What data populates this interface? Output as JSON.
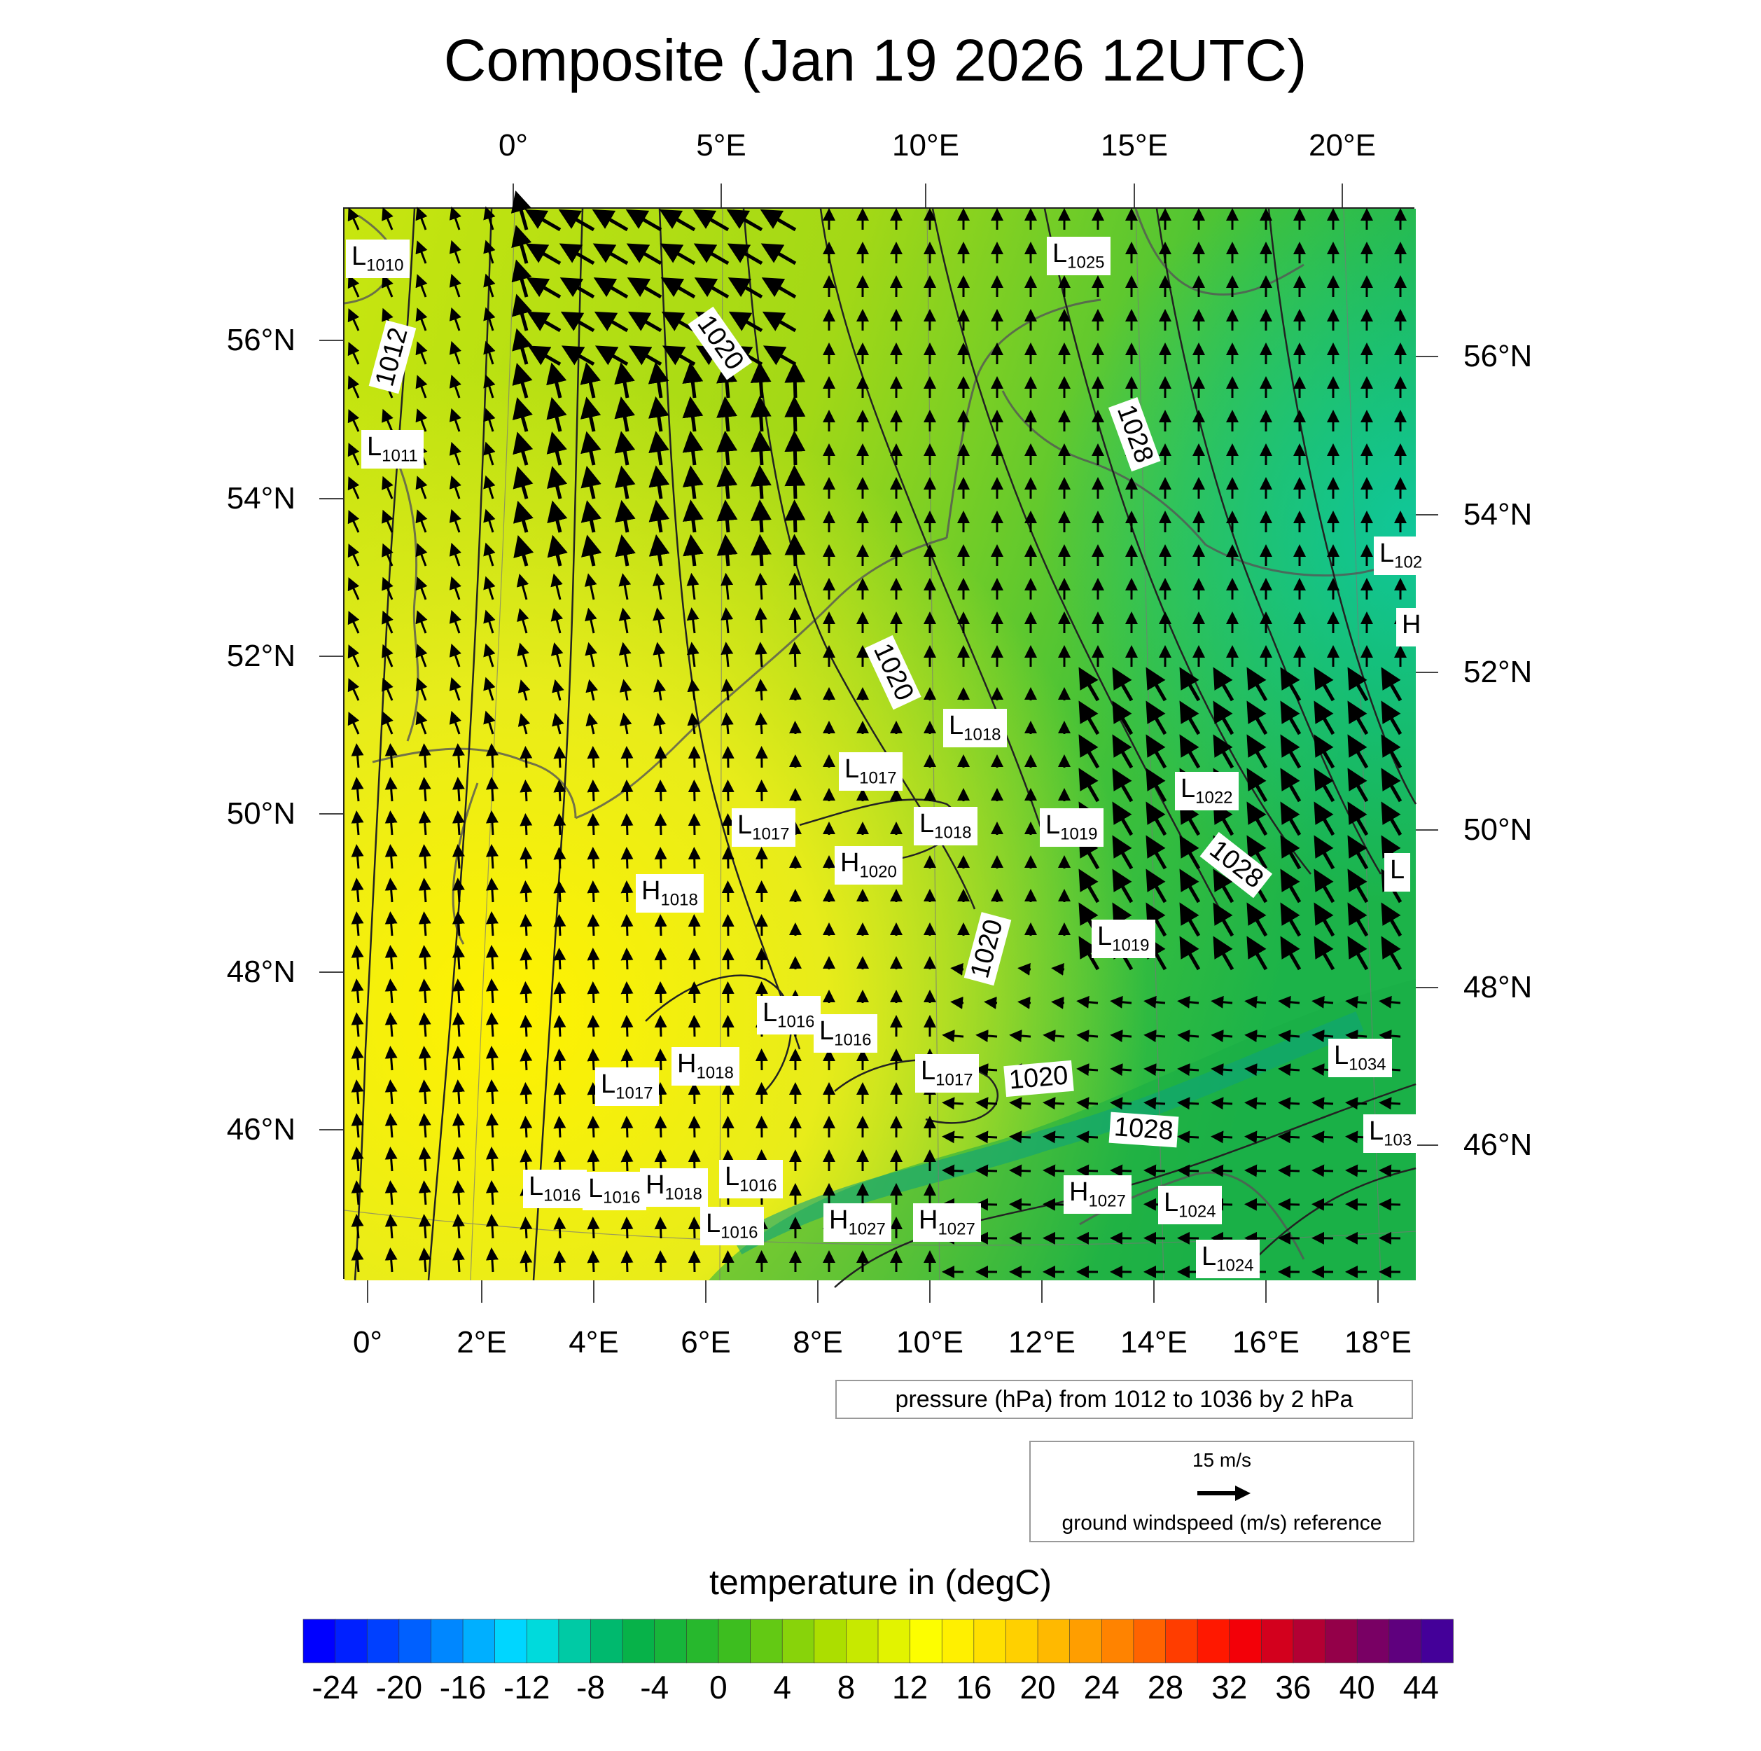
{
  "title": "Composite (Jan 19 2026 12UTC)",
  "top_lon_labels": [
    "0°",
    "5°E",
    "10°E",
    "15°E",
    "20°E"
  ],
  "bottom_lon_labels": [
    "0°",
    "2°E",
    "4°E",
    "6°E",
    "8°E",
    "10°E",
    "12°E",
    "14°E",
    "16°E",
    "18°E"
  ],
  "left_lat_labels": [
    "56°N",
    "54°N",
    "52°N",
    "50°N",
    "48°N",
    "46°N"
  ],
  "right_lat_labels": [
    "56°N",
    "54°N",
    "52°N",
    "50°N",
    "48°N",
    "46°N"
  ],
  "pressure_centers": [
    {
      "type": "L",
      "value": "1010"
    },
    {
      "type": "L",
      "value": "1025"
    },
    {
      "type": "L",
      "value": "1011"
    },
    {
      "type": "L",
      "value": "1018"
    },
    {
      "type": "L",
      "value": "1017"
    },
    {
      "type": "L",
      "value": "1022"
    },
    {
      "type": "L",
      "value": "1017"
    },
    {
      "type": "L",
      "value": "1018"
    },
    {
      "type": "L",
      "value": "1019"
    },
    {
      "type": "H",
      "value": "1020"
    },
    {
      "type": "H",
      "value": "1018"
    },
    {
      "type": "L",
      "value": "1019"
    },
    {
      "type": "L",
      "value": "1016"
    },
    {
      "type": "L",
      "value": "1016"
    },
    {
      "type": "H",
      "value": "1018"
    },
    {
      "type": "L",
      "value": "1017"
    },
    {
      "type": "L",
      "value": "1017"
    },
    {
      "type": "L",
      "value": "1034"
    },
    {
      "type": "L",
      "value": "1016"
    },
    {
      "type": "L",
      "value": "1016"
    },
    {
      "type": "H",
      "value": "1018"
    },
    {
      "type": "L",
      "value": "1016"
    },
    {
      "type": "H",
      "value": "1027"
    },
    {
      "type": "L",
      "value": "1024"
    },
    {
      "type": "L",
      "value": "1016"
    },
    {
      "type": "H",
      "value": "1027"
    },
    {
      "type": "H",
      "value": "1027"
    },
    {
      "type": "L",
      "value": "1024"
    },
    {
      "type": "L",
      "value": "103"
    },
    {
      "type": "L",
      "value": "102"
    },
    {
      "type": "H",
      "value": ""
    },
    {
      "type": "L",
      "value": ""
    }
  ],
  "isobar_labels": [
    "1012",
    "1020",
    "1028",
    "1020",
    "1028",
    "1020",
    "1020",
    "1028"
  ],
  "pressure_info": "pressure (hPa) from 1012 to 1036 by 2 hPa",
  "wind_reference": {
    "speed": "15 m/s",
    "caption": "ground windspeed (m/s) reference"
  },
  "colorbar": {
    "title": "temperature in (degC)",
    "min": -26,
    "max": 46,
    "step": 2,
    "tick_labels": [
      "-24",
      "-20",
      "-16",
      "-12",
      "-8",
      "-4",
      "0",
      "4",
      "8",
      "12",
      "16",
      "20",
      "24",
      "28",
      "32",
      "36",
      "40",
      "44"
    ],
    "colors": [
      "#0000ff",
      "#0066ff",
      "#00e5ff",
      "#00b050",
      "#33bb22",
      "#aadd00",
      "#ffff00",
      "#ffcc00",
      "#ff7700",
      "#ff0000",
      "#990044",
      "#440099"
    ]
  },
  "map_colors": {
    "cold": "#00b45a",
    "mid": "#99d414",
    "warm": "#ffee10"
  }
}
